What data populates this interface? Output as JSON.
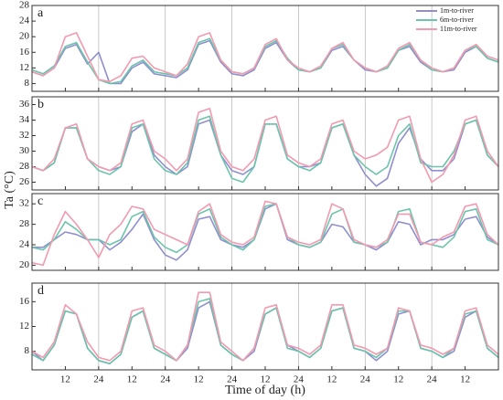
{
  "chart_data": {
    "type": "line",
    "xlabel": "Time of day (h)",
    "ylabel": "Ta (°C)",
    "xlim": [
      0,
      168
    ],
    "xticks": [
      12,
      24,
      {
        "value": 36,
        "label": "12"
      },
      {
        "value": 48,
        "label": "24"
      },
      {
        "value": 60,
        "label": "12"
      },
      {
        "value": 72,
        "label": "24"
      },
      {
        "value": 84,
        "label": "12"
      },
      {
        "value": 96,
        "label": "24"
      },
      {
        "value": 108,
        "label": "12"
      },
      {
        "value": 120,
        "label": "24"
      },
      {
        "value": 132,
        "label": "12"
      },
      {
        "value": 144,
        "label": "24"
      },
      {
        "value": 156,
        "label": "12"
      }
    ],
    "x": [
      0,
      4,
      8,
      12,
      16,
      20,
      24,
      28,
      32,
      36,
      40,
      44,
      48,
      52,
      56,
      60,
      64,
      68,
      72,
      76,
      80,
      84,
      88,
      92,
      96,
      100,
      104,
      108,
      112,
      116,
      120,
      124,
      128,
      132,
      136,
      140,
      144,
      148,
      152,
      156,
      160,
      164,
      168
    ],
    "legend": [
      {
        "name": "1m-to-river",
        "color": "#8f8fcf"
      },
      {
        "name": "6m-to-river",
        "color": "#6cc4ac"
      },
      {
        "name": "11m-to-river",
        "color": "#f29aae"
      }
    ],
    "panels": [
      {
        "label": "a",
        "ylim": [
          6,
          28
        ],
        "yticks": [
          8,
          12,
          16,
          20,
          24,
          28
        ],
        "series": [
          [
            11,
            10,
            12,
            17,
            18,
            13,
            16,
            8,
            8,
            12,
            13.5,
            10.5,
            10,
            9.5,
            11.5,
            18,
            19,
            13.5,
            10.5,
            10,
            11.5,
            17,
            18.5,
            14,
            11.5,
            11,
            12,
            16.5,
            17.5,
            14,
            11.5,
            11,
            12,
            16.5,
            17.5,
            13.5,
            11.5,
            11,
            11.5,
            16,
            17.5,
            14.5,
            13.5
          ],
          [
            11.5,
            10.5,
            12.5,
            17.5,
            18.5,
            13.5,
            9,
            8,
            8.5,
            12.5,
            14,
            11,
            10.5,
            10,
            12,
            18.5,
            19.5,
            14,
            11,
            10.5,
            12,
            17.5,
            19,
            14.5,
            11.5,
            11,
            12,
            17,
            18,
            14,
            12,
            11,
            12,
            16.5,
            18,
            14,
            11.5,
            11,
            12,
            16.5,
            17.5,
            14.5,
            13.5
          ],
          [
            11,
            10,
            12,
            20,
            21,
            15,
            9,
            8.5,
            10,
            14.5,
            15,
            12,
            11,
            10,
            13,
            20,
            21,
            14,
            11,
            10.5,
            12,
            18,
            19.5,
            14,
            12,
            11,
            12.5,
            17,
            18.5,
            14,
            12,
            11,
            12.5,
            17,
            18.5,
            14,
            12,
            11,
            12,
            16.5,
            18,
            15,
            14
          ]
        ]
      },
      {
        "label": "b",
        "ylim": [
          25,
          37
        ],
        "yticks": [
          26,
          28,
          30,
          32,
          34,
          36
        ],
        "series": [
          [
            28,
            27.5,
            28.5,
            33,
            33,
            29,
            28,
            27.5,
            28,
            32.5,
            33.5,
            29.5,
            28,
            27,
            28,
            33.5,
            34,
            29.5,
            27.5,
            27,
            28,
            33.5,
            33.5,
            29,
            28,
            28,
            28.5,
            33,
            33.5,
            29.5,
            27,
            25.5,
            26.5,
            31,
            33,
            29,
            27.5,
            27.5,
            29,
            33.5,
            34,
            29.5,
            28
          ],
          [
            28,
            27.5,
            28.5,
            33,
            33,
            29,
            27.5,
            27,
            28,
            33,
            33.5,
            29,
            27.5,
            27,
            28.5,
            34,
            34.5,
            29.5,
            26.5,
            26,
            28,
            33.5,
            33.5,
            29,
            28,
            27.5,
            28.5,
            33,
            33.5,
            29.5,
            28,
            27,
            28,
            32,
            33.5,
            28.5,
            28,
            28,
            30,
            33.5,
            34,
            29.5,
            28
          ],
          [
            28,
            27.5,
            29,
            33,
            33.5,
            29,
            28,
            27.5,
            28.5,
            33.5,
            34,
            30,
            29,
            27.5,
            29,
            35,
            35.5,
            30,
            28,
            27.5,
            29,
            34,
            34.5,
            29.5,
            28.5,
            28,
            29,
            33.5,
            34,
            30,
            29,
            29.5,
            30.5,
            34,
            34.5,
            29,
            26,
            27,
            29.5,
            34,
            34.5,
            30,
            28
          ]
        ]
      },
      {
        "label": "c",
        "ylim": [
          19,
          34
        ],
        "yticks": [
          20,
          24,
          28,
          32
        ],
        "series": [
          [
            23.5,
            23.5,
            25,
            26.5,
            26,
            25,
            25,
            23,
            24.5,
            27,
            30,
            25,
            22,
            21,
            23,
            29,
            29.5,
            25,
            24,
            23.5,
            25,
            31,
            32,
            25,
            24,
            23.5,
            24.5,
            28,
            27.5,
            24.5,
            24,
            23,
            24.5,
            28.5,
            28,
            24,
            25,
            25,
            26,
            29,
            29.5,
            25.5,
            24
          ],
          [
            23.5,
            23,
            25,
            28.5,
            27,
            25,
            25,
            24,
            25,
            29.5,
            30.5,
            25.5,
            23.5,
            22.5,
            24,
            30,
            31,
            25.5,
            24,
            23,
            25,
            31.5,
            32,
            25.5,
            24,
            23.5,
            24.5,
            30,
            31,
            24.5,
            24,
            23.5,
            24.5,
            30.5,
            31,
            24.5,
            24,
            23.5,
            25.5,
            30.5,
            31,
            25,
            24
          ],
          [
            20.5,
            20,
            26,
            30.5,
            28,
            25,
            21.5,
            26,
            28,
            31.5,
            31,
            27,
            26,
            25,
            24,
            30.5,
            32,
            26,
            24.5,
            24,
            25.5,
            32.5,
            32,
            25.5,
            24.5,
            24,
            25,
            32,
            31,
            25,
            24,
            23.5,
            25,
            30,
            30,
            24.5,
            24,
            25.5,
            26.5,
            31.5,
            32,
            26,
            24
          ]
        ]
      },
      {
        "label": "d",
        "ylim": [
          5,
          19
        ],
        "yticks": [
          8,
          12,
          16
        ],
        "series": [
          [
            8,
            6.5,
            9,
            14.5,
            14,
            8.5,
            6.5,
            6,
            7.5,
            13.5,
            14.5,
            8.5,
            7.5,
            6.5,
            8.5,
            15,
            16,
            9,
            7.5,
            6.5,
            8,
            14,
            15,
            9,
            8,
            7,
            8.5,
            14.5,
            15,
            8.5,
            8,
            6.5,
            8,
            14,
            14.5,
            8.5,
            8,
            7,
            8,
            13.5,
            14.5,
            8.5,
            7
          ],
          [
            7.5,
            6.5,
            9,
            14.5,
            14,
            8.5,
            6.5,
            6,
            7.5,
            13.5,
            14.5,
            8.5,
            7.5,
            6.5,
            9,
            16,
            16.5,
            9,
            7.5,
            6.5,
            8.5,
            14,
            15,
            8.5,
            8,
            7,
            8.5,
            14.5,
            15,
            8.5,
            8,
            7,
            8.5,
            14.5,
            14.5,
            8.5,
            8,
            7,
            8.5,
            14,
            14.5,
            8.5,
            7
          ],
          [
            8,
            7,
            9.5,
            15.5,
            14,
            9.5,
            7,
            6.5,
            8,
            14.5,
            15,
            9,
            8,
            6.5,
            9,
            17.5,
            17.5,
            9.5,
            8,
            6.5,
            8.5,
            15,
            15.5,
            9,
            8.5,
            7.5,
            9,
            15.5,
            15.5,
            9,
            8.5,
            7.5,
            8.5,
            15,
            14.5,
            9,
            8.5,
            7.5,
            8.5,
            14.5,
            15,
            9,
            7.5
          ]
        ]
      }
    ]
  }
}
